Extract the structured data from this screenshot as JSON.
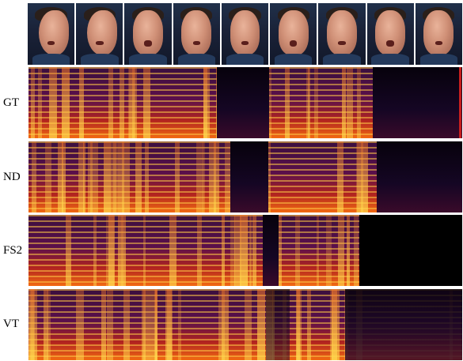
{
  "labels": {
    "gt": "GT",
    "nd": "ND",
    "fs2": "FS2",
    "vt": "VT"
  },
  "colors": {
    "spectrogram_low": "#2b0033",
    "spectrogram_mid": "#b3241f",
    "spectrogram_high": "#ffd25a",
    "background": "#ffffff"
  },
  "frames_count": 9,
  "rows": [
    "gt",
    "nd",
    "fs2",
    "vt"
  ]
}
